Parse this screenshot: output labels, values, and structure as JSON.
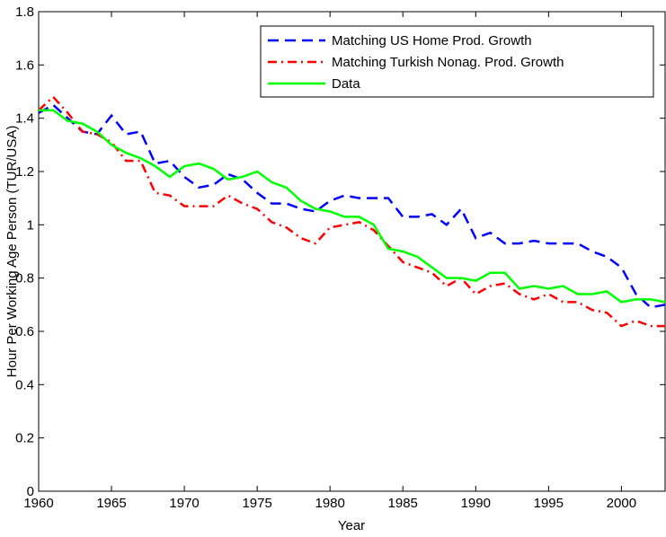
{
  "chart_data": {
    "type": "line",
    "x_label": "Year",
    "y_label": "Hour Per Working Age Person (TUR/USA)",
    "x": [
      1960,
      1961,
      1962,
      1963,
      1964,
      1965,
      1966,
      1967,
      1968,
      1969,
      1970,
      1971,
      1972,
      1973,
      1974,
      1975,
      1976,
      1977,
      1978,
      1979,
      1980,
      1981,
      1982,
      1983,
      1984,
      1985,
      1986,
      1987,
      1988,
      1989,
      1990,
      1991,
      1992,
      1993,
      1994,
      1995,
      1996,
      1997,
      1998,
      1999,
      2000,
      2001,
      2002,
      2003
    ],
    "xlim": [
      1960,
      2003
    ],
    "xticks": [
      1960,
      1965,
      1970,
      1975,
      1980,
      1985,
      1990,
      1995,
      2000
    ],
    "ylim": [
      0,
      1.8
    ],
    "yticks": [
      0,
      0.2,
      0.4,
      0.6,
      0.8,
      1,
      1.2,
      1.4,
      1.6,
      1.8
    ],
    "legend_position": "upper-right",
    "series": [
      {
        "name": "Matching US Home Prod. Growth",
        "color": "#0000ff",
        "style": "dashed",
        "values": [
          1.42,
          1.45,
          1.4,
          1.35,
          1.34,
          1.41,
          1.34,
          1.35,
          1.23,
          1.24,
          1.18,
          1.14,
          1.15,
          1.19,
          1.17,
          1.12,
          1.08,
          1.08,
          1.06,
          1.05,
          1.09,
          1.11,
          1.1,
          1.1,
          1.1,
          1.03,
          1.03,
          1.04,
          1.0,
          1.06,
          0.95,
          0.97,
          0.93,
          0.93,
          0.94,
          0.93,
          0.93,
          0.93,
          0.9,
          0.88,
          0.84,
          0.74,
          0.69,
          0.7
        ]
      },
      {
        "name": "Matching Turkish Nonag. Prod. Growth",
        "color": "#ff0000",
        "style": "dashdot",
        "values": [
          1.43,
          1.48,
          1.42,
          1.35,
          1.34,
          1.31,
          1.24,
          1.24,
          1.12,
          1.11,
          1.07,
          1.07,
          1.07,
          1.11,
          1.08,
          1.06,
          1.01,
          0.99,
          0.95,
          0.93,
          0.99,
          1.0,
          1.01,
          0.98,
          0.92,
          0.86,
          0.84,
          0.82,
          0.77,
          0.8,
          0.74,
          0.77,
          0.78,
          0.74,
          0.72,
          0.74,
          0.71,
          0.71,
          0.68,
          0.67,
          0.62,
          0.64,
          0.62,
          0.62
        ]
      },
      {
        "name": "Data",
        "color": "#00ff00",
        "style": "solid",
        "values": [
          1.43,
          1.43,
          1.39,
          1.38,
          1.35,
          1.3,
          1.27,
          1.25,
          1.22,
          1.18,
          1.22,
          1.23,
          1.21,
          1.17,
          1.18,
          1.2,
          1.16,
          1.14,
          1.09,
          1.06,
          1.05,
          1.03,
          1.03,
          1.0,
          0.91,
          0.9,
          0.88,
          0.84,
          0.8,
          0.8,
          0.79,
          0.82,
          0.82,
          0.76,
          0.77,
          0.76,
          0.77,
          0.74,
          0.74,
          0.75,
          0.71,
          0.72,
          0.72,
          0.71
        ]
      }
    ]
  }
}
